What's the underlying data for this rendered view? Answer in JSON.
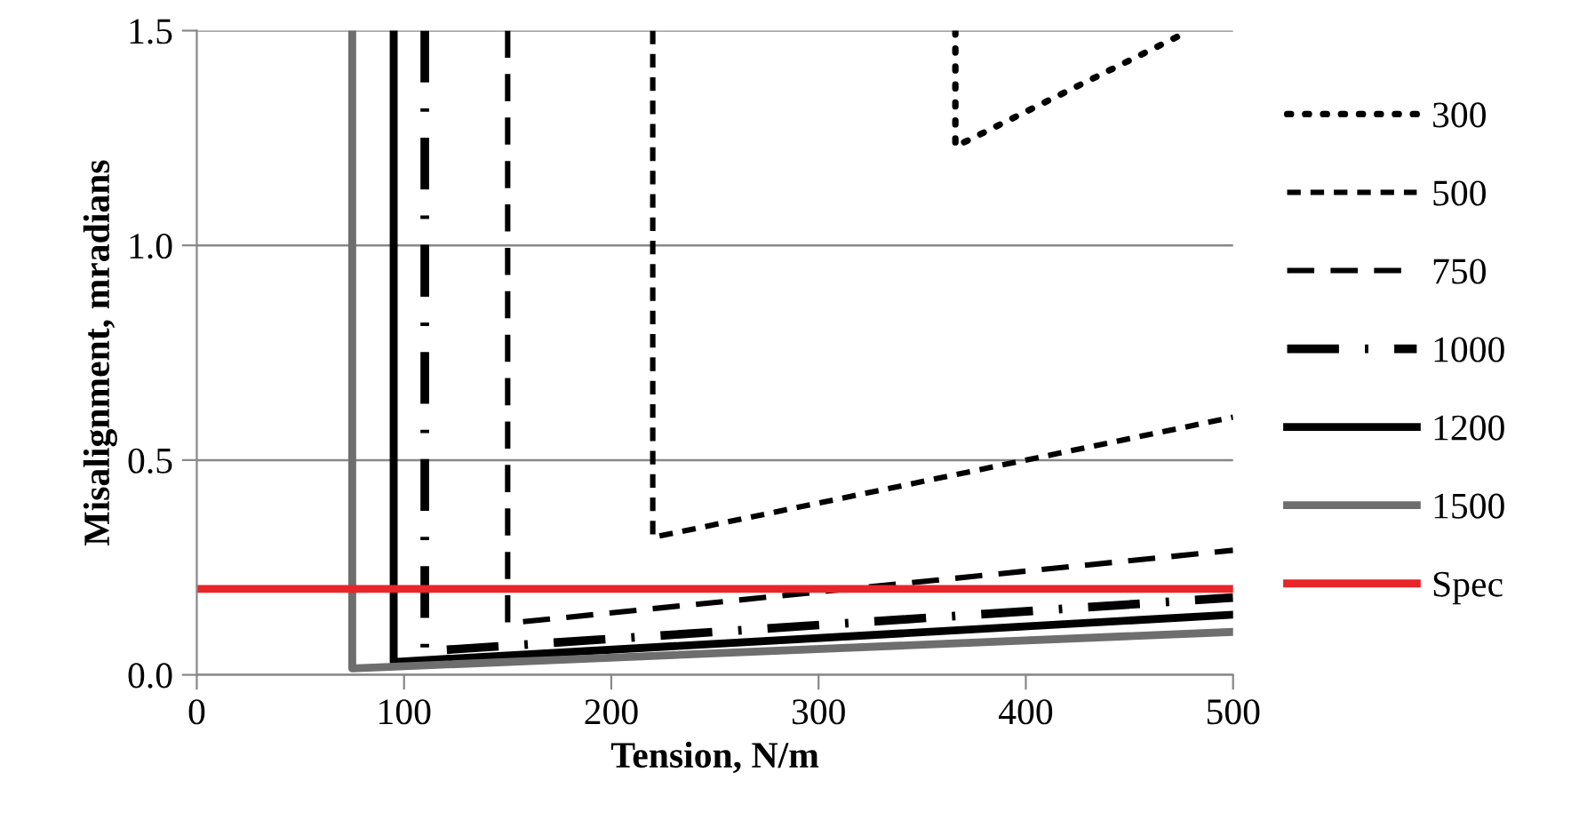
{
  "chart_data": {
    "type": "line",
    "xlabel": "Tension, N/m",
    "ylabel": "Misalignment, mradians",
    "xlim": [
      0,
      500
    ],
    "xticks": [
      0,
      100,
      200,
      300,
      400,
      500
    ],
    "ylim": [
      0,
      1.5
    ],
    "yticks": [
      {
        "value": 0,
        "label": "0.0"
      },
      {
        "value": 0.5,
        "label": "0.5"
      },
      {
        "value": 1.0,
        "label": "1.0"
      },
      {
        "value": 1.5,
        "label": "1.5"
      }
    ],
    "grid": "y",
    "legend": "right",
    "series": [
      {
        "name": "300",
        "color": "#000000",
        "line_style": "dotted",
        "x": [
          366,
          366,
          479
        ],
        "values": [
          1.5,
          1.23,
          1.5
        ]
      },
      {
        "name": "500",
        "color": "#000000",
        "line_style": "dashed",
        "x": [
          220,
          220,
          500
        ],
        "values": [
          1.5,
          0.32,
          0.6
        ]
      },
      {
        "name": "750",
        "color": "#000000",
        "line_style": "longdashed",
        "x": [
          150,
          150,
          500
        ],
        "values": [
          1.5,
          0.12,
          0.29
        ]
      },
      {
        "name": "1000",
        "color": "#000000",
        "line_style": "dashdot",
        "x": [
          110,
          110,
          500
        ],
        "values": [
          1.5,
          0.055,
          0.18
        ]
      },
      {
        "name": "1200",
        "color": "#000000",
        "line_style": "solid",
        "x": [
          95,
          95,
          500
        ],
        "values": [
          1.5,
          0.03,
          0.14
        ]
      },
      {
        "name": "1500",
        "color": "#6e6e6e",
        "line_style": "solid",
        "x": [
          75,
          75,
          500
        ],
        "values": [
          1.5,
          0.015,
          0.1
        ]
      },
      {
        "name": "Spec",
        "color": "#e8262a",
        "line_style": "solid",
        "x": [
          0,
          500
        ],
        "values": [
          0.2,
          0.2
        ]
      }
    ]
  }
}
